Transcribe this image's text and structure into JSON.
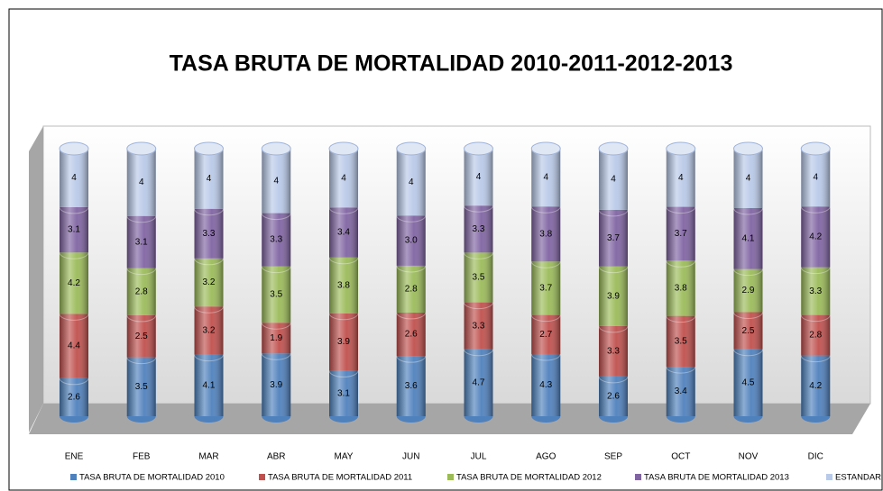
{
  "chart_data": {
    "type": "bar",
    "stacked": "percent",
    "title": "TASA BRUTA DE MORTALIDAD 2010-2011-2012-2013",
    "categories": [
      "ENE",
      "FEB",
      "MAR",
      "ABR",
      "MAY",
      "JUN",
      "JUL",
      "AGO",
      "SEP",
      "OCT",
      "NOV",
      "DIC"
    ],
    "legend": "bottom",
    "series": [
      {
        "name": "TASA BRUTA DE MORTALIDAD 2010",
        "color": "#4f81bd",
        "values": [
          2.6,
          3.5,
          4.1,
          3.9,
          3.1,
          3.6,
          4.7,
          4.3,
          2.6,
          3.4,
          4.5,
          4.2
        ]
      },
      {
        "name": "TASA BRUTA DE MORTALIDAD 2011",
        "color": "#c0504d",
        "values": [
          4.4,
          2.5,
          3.2,
          1.9,
          3.9,
          2.6,
          3.3,
          2.7,
          3.3,
          3.5,
          2.5,
          2.8
        ]
      },
      {
        "name": "TASA BRUTA DE MORTALIDAD 2012",
        "color": "#9bbb59",
        "values": [
          4.2,
          2.8,
          3.2,
          3.5,
          3.8,
          2.8,
          3.5,
          3.7,
          3.9,
          3.8,
          2.9,
          3.3
        ]
      },
      {
        "name": "TASA BRUTA DE MORTALIDAD 2013",
        "color": "#8064a2",
        "values": [
          3.1,
          3.1,
          3.3,
          3.3,
          3.4,
          3.0,
          3.3,
          3.8,
          3.7,
          3.7,
          4.1,
          4.2
        ],
        "value_labels": [
          "3.1",
          "3.1",
          "3.3",
          "3.3",
          "3.4",
          "3.0",
          "3.3",
          "3.8",
          "3.7",
          "3.7",
          "4.1",
          "4.2"
        ]
      },
      {
        "name": "ESTANDAR",
        "color": "#b9c9e8",
        "values": [
          4,
          4,
          4,
          4,
          4,
          4,
          4,
          4,
          4,
          4,
          4,
          4
        ]
      }
    ]
  }
}
